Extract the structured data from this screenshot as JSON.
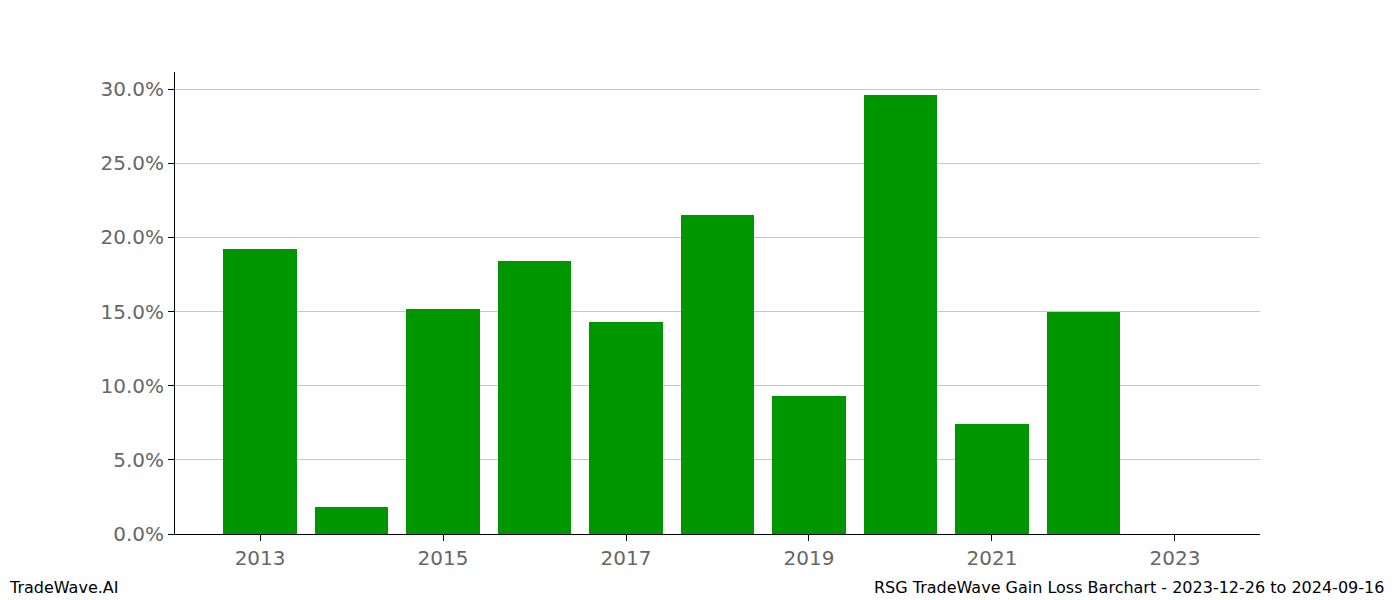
{
  "chart_data": {
    "type": "bar",
    "x": [
      2013,
      2014,
      2015,
      2016,
      2017,
      2018,
      2019,
      2020,
      2021,
      2022
    ],
    "values": [
      19.2,
      1.8,
      15.2,
      18.4,
      14.3,
      21.5,
      9.3,
      29.6,
      7.4,
      15.0
    ],
    "color": "#009600",
    "xlim": [
      2012.07,
      2023.93
    ],
    "xticks": [
      2013,
      2015,
      2017,
      2019,
      2021,
      2023
    ],
    "ylim": [
      0,
      31.15
    ],
    "yticks": [
      {
        "value": 0,
        "label": "0.0%"
      },
      {
        "value": 5,
        "label": "5.0%"
      },
      {
        "value": 10,
        "label": "10.0%"
      },
      {
        "value": 15,
        "label": "15.0%"
      },
      {
        "value": 20,
        "label": "20.0%"
      },
      {
        "value": 25,
        "label": "25.0%"
      },
      {
        "value": 30,
        "label": "30.0%"
      }
    ],
    "grid": true,
    "annotations": [
      "TradeWave.AI",
      "RSG TradeWave Gain Loss Barchart - 2023-12-26 to 2024-09-16"
    ]
  }
}
